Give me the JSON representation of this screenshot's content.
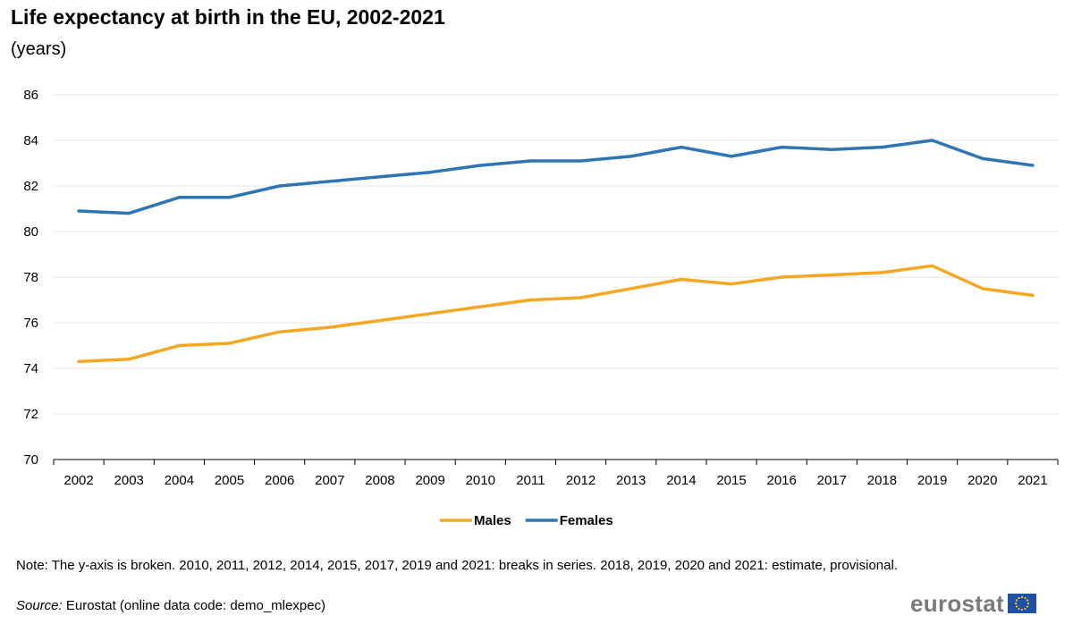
{
  "title": "Life expectancy at birth in the EU, 2002-2021",
  "subtitle": "(years)",
  "chart_data": {
    "type": "line",
    "title": "Life expectancy at birth in the EU, 2002-2021",
    "subtitle": "(years)",
    "x": [
      "2002",
      "2003",
      "2004",
      "2005",
      "2006",
      "2007",
      "2008",
      "2009",
      "2010",
      "2011",
      "2012",
      "2013",
      "2014",
      "2015",
      "2016",
      "2017",
      "2018",
      "2019",
      "2020",
      "2021"
    ],
    "series": [
      {
        "name": "Males",
        "color": "#F5A623",
        "values": [
          74.3,
          74.4,
          75.0,
          75.1,
          75.6,
          75.8,
          76.1,
          76.4,
          76.7,
          77.0,
          77.1,
          77.5,
          77.9,
          77.7,
          78.0,
          78.1,
          78.2,
          78.5,
          77.5,
          77.2
        ]
      },
      {
        "name": "Females",
        "color": "#2E75B6",
        "values": [
          80.9,
          80.8,
          81.5,
          81.5,
          82.0,
          82.2,
          82.4,
          82.6,
          82.9,
          83.1,
          83.1,
          83.3,
          83.7,
          83.3,
          83.7,
          83.6,
          83.7,
          84.0,
          83.2,
          82.9
        ]
      }
    ],
    "yticks": [
      70,
      72,
      74,
      76,
      78,
      80,
      82,
      84,
      86
    ],
    "ylim": [
      70,
      86
    ],
    "grid": true,
    "legend_position": "bottom-center"
  },
  "note": "Note: The y-axis is broken.  2010, 2011, 2012, 2014, 2015, 2017, 2019 and 2021: breaks in series.  2018, 2019, 2020 and 2021: estimate, provisional.",
  "source_label": "Source:",
  "source_text": " Eurostat (online data code: demo_mlexpec)",
  "logo_text": "eurostat",
  "logo_icon": "eu-flag-icon"
}
